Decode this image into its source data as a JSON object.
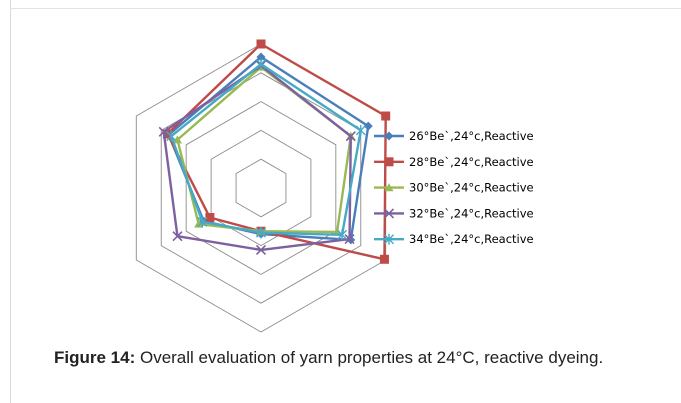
{
  "figure": {
    "caption_label": "Figure 14:",
    "caption_text": " Overall evaluation of yarn properties at 24°C, reactive dyeing."
  },
  "chart_data": {
    "type": "radar",
    "axes_count": 6,
    "rings": 5,
    "r_max": 5,
    "axis_labels": [],
    "series": [
      {
        "name": "26°Be`,24°c,Reactive",
        "color": "#4a7ebb",
        "marker": "diamond",
        "values": [
          4.55,
          4.3,
          3.6,
          1.6,
          2.3,
          3.7
        ]
      },
      {
        "name": "28°Be`,24°c,Reactive",
        "color": "#be4b48",
        "marker": "square",
        "values": [
          5.0,
          5.0,
          4.95,
          1.5,
          2.05,
          3.75
        ]
      },
      {
        "name": "30°Be`,24°c,Reactive",
        "color": "#98b954",
        "marker": "triangle",
        "values": [
          4.2,
          3.6,
          3.05,
          1.5,
          2.5,
          3.35
        ]
      },
      {
        "name": "32°Be`,24°c,Reactive",
        "color": "#7d60a0",
        "marker": "x",
        "values": [
          4.25,
          3.6,
          3.55,
          2.15,
          3.35,
          3.9
        ]
      },
      {
        "name": "34°Be`,24°c,Reactive",
        "color": "#46aac5",
        "marker": "star",
        "values": [
          4.3,
          4.0,
          3.25,
          1.55,
          2.35,
          3.6
        ]
      }
    ]
  }
}
